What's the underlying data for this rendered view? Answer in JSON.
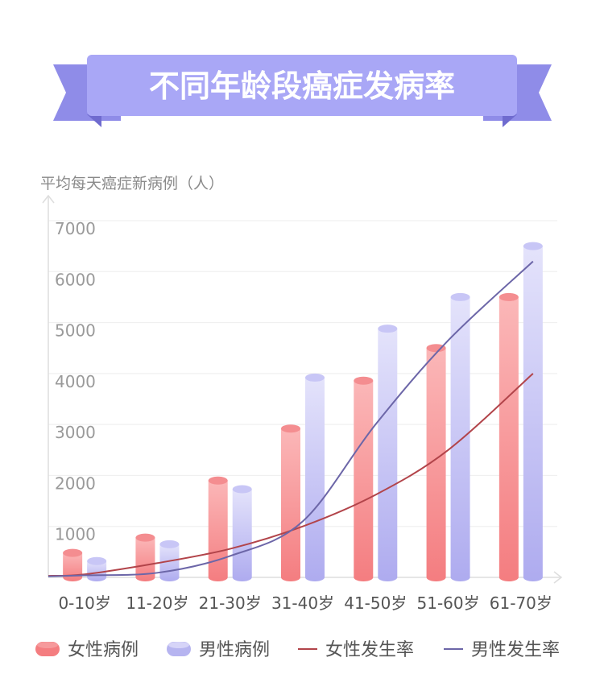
{
  "chart_data": {
    "type": "bar",
    "title": "不同年龄段癌症发病率",
    "ylabel": "平均每天癌症新病例（人）",
    "xlabel": "",
    "ylim": [
      0,
      7000
    ],
    "yticks": [
      1000,
      2000,
      3000,
      4000,
      5000,
      6000,
      7000
    ],
    "categories": [
      "0-10岁",
      "11-20岁",
      "21-30岁",
      "31-40岁",
      "41-50岁",
      "51-60岁",
      "61-70岁"
    ],
    "series": [
      {
        "name": "女性病例",
        "kind": "bar",
        "values": [
          480,
          780,
          1900,
          2920,
          3860,
          4500,
          5500
        ]
      },
      {
        "name": "男性病例",
        "kind": "bar",
        "values": [
          320,
          650,
          1730,
          3920,
          4880,
          5500,
          6500
        ]
      },
      {
        "name": "女性发生率",
        "kind": "line",
        "values": [
          60,
          280,
          560,
          1000,
          1620,
          2500,
          4000
        ]
      },
      {
        "name": "男性发生率",
        "kind": "line",
        "values": [
          40,
          90,
          420,
          1100,
          3000,
          4650,
          6200
        ]
      }
    ],
    "grid": true,
    "legend": "bottom"
  },
  "colors": {
    "female_bar": "#f47d80",
    "male_bar": "#b6b4f0",
    "female_line": "#b2444a",
    "male_line": "#6c66a8",
    "banner": "#a8a6f5",
    "banner_dark": "#8c89e6"
  }
}
